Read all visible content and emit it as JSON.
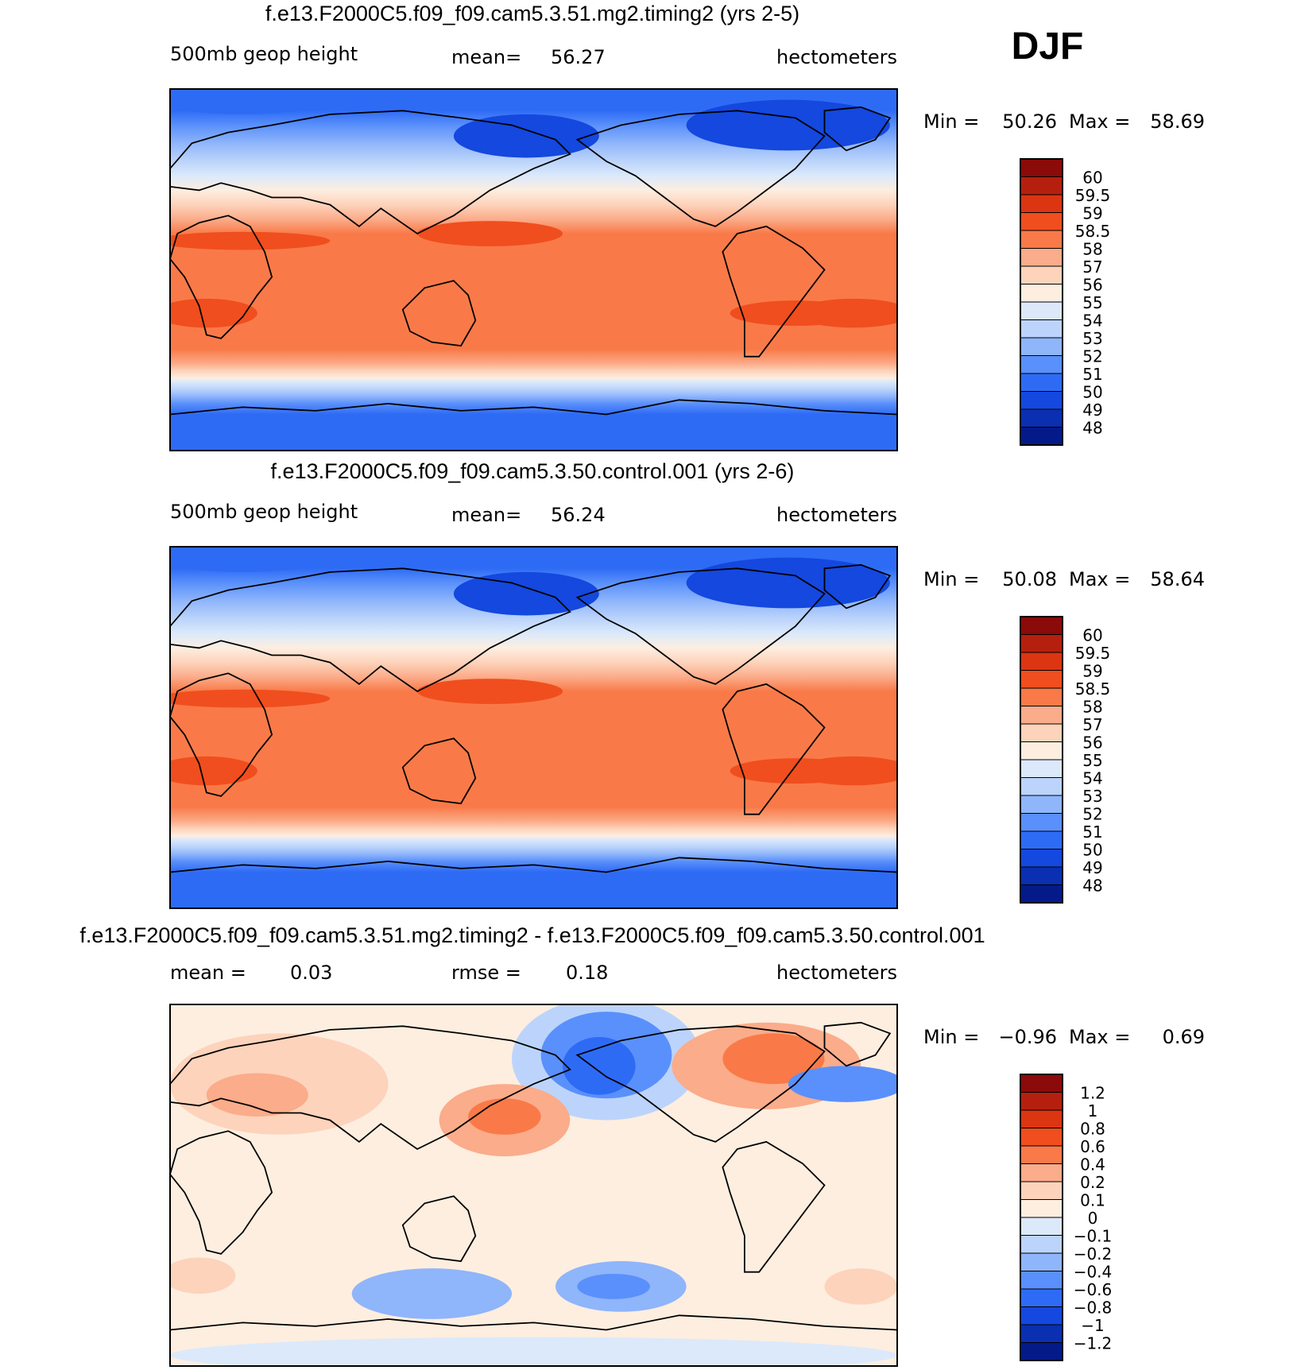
{
  "season": "DJF",
  "panels": [
    {
      "title": "f.e13.F2000C5.f09_f09.cam5.3.51.mg2.timing2 (yrs 2-5)",
      "left_label": "500mb geop height",
      "stat1_label": "mean=",
      "stat1_value": "56.27",
      "stat2_label": "",
      "stat2_value": "",
      "units": "hectometers",
      "min_label": "Min =",
      "min_value": "50.26",
      "max_label": "Max =",
      "max_value": "58.69",
      "colorbar_labels": [
        "60",
        "59.5",
        "59",
        "58.5",
        "58",
        "57",
        "56",
        "55",
        "54",
        "53",
        "52",
        "51",
        "50",
        "49",
        "48"
      ],
      "colorbar_colors": [
        "#8b0a0a",
        "#b5200e",
        "#dc3512",
        "#f04e1e",
        "#f97a48",
        "#fbac8a",
        "#fdd3bb",
        "#fdeee0",
        "#dbe9fb",
        "#bcd4fb",
        "#8fb5fb",
        "#5a90fb",
        "#2e6bf5",
        "#1448de",
        "#0a2fb0",
        "#041a88"
      ]
    },
    {
      "title": "f.e13.F2000C5.f09_f09.cam5.3.50.control.001 (yrs 2-6)",
      "left_label": "500mb geop height",
      "stat1_label": "mean=",
      "stat1_value": "56.24",
      "stat2_label": "",
      "stat2_value": "",
      "units": "hectometers",
      "min_label": "Min =",
      "min_value": "50.08",
      "max_label": "Max =",
      "max_value": "58.64",
      "colorbar_labels": [
        "60",
        "59.5",
        "59",
        "58.5",
        "58",
        "57",
        "56",
        "55",
        "54",
        "53",
        "52",
        "51",
        "50",
        "49",
        "48"
      ],
      "colorbar_colors": [
        "#8b0a0a",
        "#b5200e",
        "#dc3512",
        "#f04e1e",
        "#f97a48",
        "#fbac8a",
        "#fdd3bb",
        "#fdeee0",
        "#dbe9fb",
        "#bcd4fb",
        "#8fb5fb",
        "#5a90fb",
        "#2e6bf5",
        "#1448de",
        "#0a2fb0",
        "#041a88"
      ]
    },
    {
      "title": "f.e13.F2000C5.f09_f09.cam5.3.51.mg2.timing2 - f.e13.F2000C5.f09_f09.cam5.3.50.control.001",
      "left_label": "",
      "stat1_label": "mean =",
      "stat1_value": "0.03",
      "stat2_label": "rmse =",
      "stat2_value": "0.18",
      "units": "hectometers",
      "min_label": "Min =",
      "min_value": "−0.96",
      "max_label": "Max =",
      "max_value": "0.69",
      "colorbar_labels": [
        "1.2",
        "1",
        "0.8",
        "0.6",
        "0.4",
        "0.2",
        "0.1",
        "0",
        "−0.1",
        "−0.2",
        "−0.4",
        "−0.6",
        "−0.8",
        "−1",
        "−1.2"
      ],
      "colorbar_colors": [
        "#8b0a0a",
        "#b5200e",
        "#dc3512",
        "#f04e1e",
        "#f97a48",
        "#fbac8a",
        "#fdd3bb",
        "#fdeee0",
        "#dbe9fb",
        "#bcd4fb",
        "#8fb5fb",
        "#5a90fb",
        "#2e6bf5",
        "#1448de",
        "#0a2fb0",
        "#041a88"
      ]
    }
  ]
}
